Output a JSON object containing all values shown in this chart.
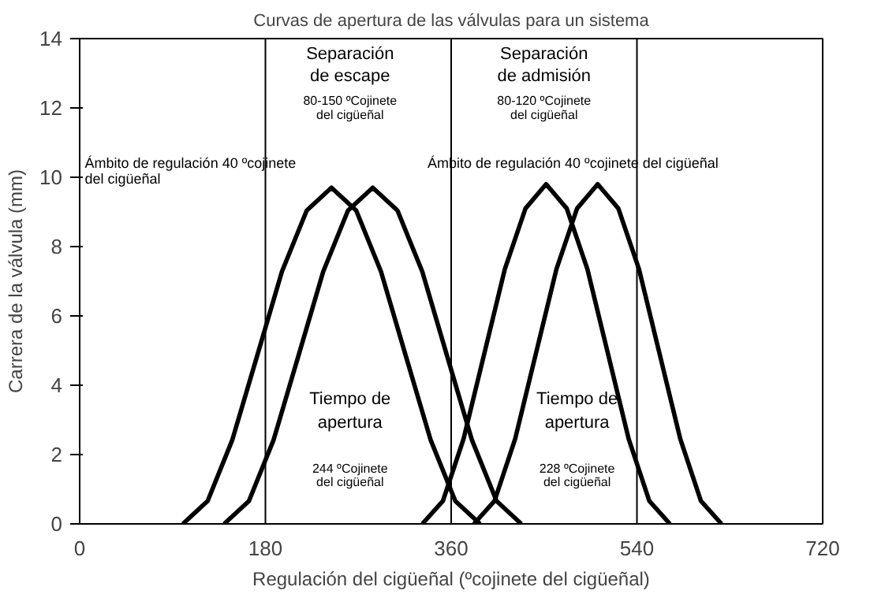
{
  "chart_data": {
    "type": "line",
    "title": "Curvas de apertura de las válvulas para un sistema",
    "xlabel": "Regulación del cigüeñal (ºcojinete del cigüeñal)",
    "ylabel": "Carrera de la válvula (mm)",
    "xlim": [
      0,
      720
    ],
    "ylim": [
      0,
      14
    ],
    "xticks": [
      0,
      180,
      360,
      540,
      720
    ],
    "yticks": [
      0,
      2,
      4,
      6,
      8,
      10,
      12,
      14
    ],
    "grid": false,
    "marker": "none",
    "line_style": "solid",
    "series": [
      {
        "color": "#000000",
        "x": [
          100,
          124,
          148,
          172,
          196,
          220,
          244,
          268,
          292,
          316,
          340,
          364,
          388
        ],
        "values": [
          0,
          0.66,
          2.43,
          4.85,
          7.28,
          9.04,
          9.7,
          9.04,
          7.28,
          4.85,
          2.43,
          0.66,
          0
        ]
      },
      {
        "color": "#000000",
        "x": [
          140,
          164,
          188,
          212,
          236,
          260,
          284,
          308,
          332,
          356,
          380,
          404,
          428
        ],
        "values": [
          0,
          0.66,
          2.43,
          4.85,
          7.28,
          9.04,
          9.7,
          9.04,
          7.28,
          4.85,
          2.43,
          0.66,
          0
        ]
      },
      {
        "color": "#000000",
        "x": [
          332,
          352,
          372,
          392,
          412,
          432,
          452,
          472,
          492,
          512,
          532,
          552,
          572
        ],
        "values": [
          0,
          0.66,
          2.45,
          4.9,
          7.35,
          9.1,
          9.8,
          9.1,
          7.35,
          4.9,
          2.45,
          0.66,
          0
        ]
      },
      {
        "color": "#000000",
        "x": [
          382,
          402,
          422,
          442,
          462,
          482,
          502,
          522,
          542,
          562,
          582,
          602,
          622
        ],
        "values": [
          0,
          0.66,
          2.45,
          4.9,
          7.35,
          9.1,
          9.8,
          9.1,
          7.35,
          4.9,
          2.45,
          0.66,
          0
        ]
      }
    ],
    "ref_lines": [
      {
        "axis": "x",
        "value": 180,
        "color": "#000000"
      },
      {
        "axis": "x",
        "value": 360,
        "color": "#000000"
      },
      {
        "axis": "x",
        "value": 540,
        "color": "#000000"
      }
    ],
    "annotations": [
      "Separación",
      "de escape",
      "80-150 ºCojinete",
      "del cigüeñal",
      "Separación",
      "de admisión",
      "80-120 ºCojinete",
      "del cigüeñal",
      "Ámbito de regulación 40 ºcojinete",
      "del cigüeñal",
      "Ámbito de regulación 40 ºcojinete del cigüeñal",
      "Tiempo de",
      "apertura",
      "244 ºCojinete",
      "del cigüeñal",
      "Tiempo de",
      "apertura",
      "228 ºCojinete",
      "del cigüeñal"
    ]
  }
}
